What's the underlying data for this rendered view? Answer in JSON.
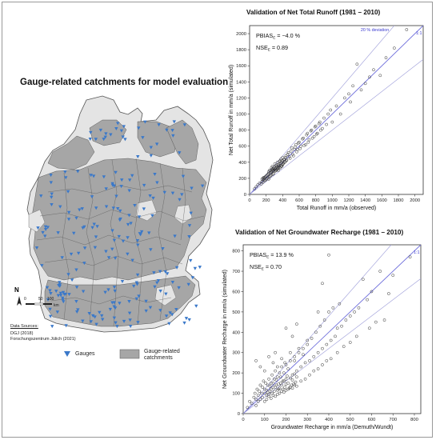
{
  "map": {
    "title": "Gauge-related catchments for model evaluation",
    "north_label": "N",
    "scale": {
      "ticks": [
        "0",
        "50",
        "100"
      ],
      "unit": "km"
    },
    "data_sources": {
      "heading": "Data Sources:",
      "lines": [
        "DGJ (2018)",
        "Forschungszentrum Jülich (2021)"
      ]
    },
    "legend": {
      "gauges_label": "Gauges",
      "catchments_label": "Gauge-related catchments"
    },
    "colors": {
      "gauge": "#3a78c9",
      "catchment": "#a6a6a6",
      "country": "#e4e4e4"
    }
  },
  "chart_data": [
    {
      "type": "scatter",
      "title": "Validation of Net Total Runoff (1981 – 2010)",
      "xlabel": "Total Runoff in mm/a (observed)",
      "ylabel": "Net Total Runoff in mm/a (simulated)",
      "xlim": [
        0,
        2100
      ],
      "ylim": [
        0,
        2100
      ],
      "xticks": [
        0,
        200,
        400,
        600,
        800,
        1000,
        1200,
        1400,
        1600,
        1800,
        2000
      ],
      "yticks": [
        0,
        200,
        400,
        600,
        800,
        1000,
        1200,
        1400,
        1600,
        1800,
        2000
      ],
      "deviation_label": "20 % deviation",
      "identity_label": "1:1",
      "stats": [
        {
          "name": "PBIAS",
          "sub": "E",
          "text": " = −4.0 %"
        },
        {
          "name": "NSE",
          "sub": "E",
          "text": " = 0.89"
        }
      ],
      "points": [
        [
          80,
          95
        ],
        [
          120,
          140
        ],
        [
          150,
          160
        ],
        [
          170,
          190
        ],
        [
          180,
          210
        ],
        [
          190,
          175
        ],
        [
          200,
          230
        ],
        [
          210,
          200
        ],
        [
          220,
          250
        ],
        [
          230,
          260
        ],
        [
          240,
          220
        ],
        [
          250,
          270
        ],
        [
          255,
          300
        ],
        [
          260,
          240
        ],
        [
          265,
          330
        ],
        [
          270,
          280
        ],
        [
          275,
          350
        ],
        [
          280,
          300
        ],
        [
          285,
          320
        ],
        [
          290,
          260
        ],
        [
          295,
          340
        ],
        [
          300,
          310
        ],
        [
          305,
          380
        ],
        [
          310,
          290
        ],
        [
          315,
          330
        ],
        [
          320,
          360
        ],
        [
          325,
          300
        ],
        [
          330,
          350
        ],
        [
          335,
          400
        ],
        [
          340,
          320
        ],
        [
          345,
          370
        ],
        [
          350,
          340
        ],
        [
          360,
          380
        ],
        [
          370,
          420
        ],
        [
          380,
          360
        ],
        [
          390,
          400
        ],
        [
          400,
          460
        ],
        [
          410,
          390
        ],
        [
          420,
          440
        ],
        [
          430,
          410
        ],
        [
          440,
          480
        ],
        [
          450,
          430
        ],
        [
          460,
          500
        ],
        [
          480,
          470
        ],
        [
          500,
          540
        ],
        [
          520,
          500
        ],
        [
          540,
          560
        ],
        [
          560,
          620
        ],
        [
          580,
          560
        ],
        [
          600,
          650
        ],
        [
          620,
          600
        ],
        [
          650,
          700
        ],
        [
          680,
          620
        ],
        [
          700,
          760
        ],
        [
          720,
          680
        ],
        [
          750,
          800
        ],
        [
          780,
          720
        ],
        [
          800,
          850
        ],
        [
          820,
          760
        ],
        [
          850,
          900
        ],
        [
          880,
          820
        ],
        [
          900,
          950
        ],
        [
          930,
          870
        ],
        [
          950,
          1000
        ],
        [
          980,
          1050
        ],
        [
          1000,
          900
        ],
        [
          1050,
          1100
        ],
        [
          1100,
          1000
        ],
        [
          1150,
          1200
        ],
        [
          1200,
          1250
        ],
        [
          1220,
          1150
        ],
        [
          1250,
          1350
        ],
        [
          1300,
          1620
        ],
        [
          1350,
          1300
        ],
        [
          1400,
          1380
        ],
        [
          1450,
          1460
        ],
        [
          1500,
          1550
        ],
        [
          1580,
          1480
        ],
        [
          1650,
          1700
        ],
        [
          1750,
          1820
        ],
        [
          1900,
          2050
        ],
        [
          140,
          130
        ],
        [
          160,
          200
        ],
        [
          100,
          120
        ],
        [
          60,
          70
        ],
        [
          230,
          190
        ],
        [
          285,
          290
        ],
        [
          295,
          300
        ],
        [
          305,
          320
        ],
        [
          315,
          300
        ],
        [
          325,
          340
        ],
        [
          335,
          310
        ],
        [
          345,
          330
        ],
        [
          355,
          360
        ],
        [
          365,
          340
        ],
        [
          375,
          390
        ],
        [
          385,
          350
        ],
        [
          395,
          420
        ],
        [
          405,
          380
        ],
        [
          415,
          430
        ],
        [
          425,
          400
        ],
        [
          435,
          460
        ],
        [
          445,
          420
        ],
        [
          470,
          520
        ],
        [
          490,
          450
        ],
        [
          510,
          580
        ],
        [
          530,
          480
        ],
        [
          550,
          590
        ],
        [
          570,
          530
        ],
        [
          590,
          640
        ],
        [
          610,
          570
        ],
        [
          640,
          690
        ],
        [
          660,
          610
        ],
        [
          690,
          740
        ],
        [
          710,
          650
        ],
        [
          740,
          790
        ],
        [
          760,
          700
        ],
        [
          790,
          840
        ],
        [
          810,
          750
        ],
        [
          840,
          880
        ],
        [
          860,
          800
        ],
        [
          350,
          300
        ],
        [
          360,
          410
        ],
        [
          370,
          330
        ],
        [
          380,
          440
        ],
        [
          390,
          350
        ],
        [
          400,
          370
        ],
        [
          280,
          250
        ],
        [
          270,
          310
        ],
        [
          260,
          280
        ],
        [
          250,
          230
        ],
        [
          240,
          300
        ],
        [
          230,
          280
        ],
        [
          220,
          210
        ],
        [
          210,
          240
        ],
        [
          200,
          190
        ],
        [
          190,
          220
        ],
        [
          180,
          170
        ],
        [
          170,
          210
        ],
        [
          160,
          150
        ],
        [
          150,
          190
        ]
      ]
    },
    {
      "type": "scatter",
      "title": "Validation of Net Groundwater Recharge (1981 – 2010)",
      "xlabel": "Groundwater Recharge in mm/a (Demuth/Wundt)",
      "ylabel": "Net Groundwater Recharge in mm/a (simulated)",
      "xlim": [
        0,
        830
      ],
      "ylim": [
        0,
        830
      ],
      "xticks": [
        0,
        100,
        200,
        300,
        400,
        500,
        600,
        700,
        800
      ],
      "yticks": [
        0,
        100,
        200,
        300,
        400,
        500,
        600,
        700,
        800
      ],
      "identity_label": "1:1",
      "stats": [
        {
          "name": "PBIAS",
          "sub": "E",
          "text": " = 13.9 %"
        },
        {
          "name": "NSE",
          "sub": "E",
          "text": " = 0.70"
        }
      ],
      "points": [
        [
          20,
          30
        ],
        [
          30,
          60
        ],
        [
          40,
          50
        ],
        [
          50,
          80
        ],
        [
          55,
          100
        ],
        [
          60,
          70
        ],
        [
          65,
          120
        ],
        [
          70,
          90
        ],
        [
          75,
          110
        ],
        [
          80,
          140
        ],
        [
          85,
          100
        ],
        [
          90,
          130
        ],
        [
          95,
          160
        ],
        [
          100,
          120
        ],
        [
          105,
          150
        ],
        [
          110,
          90
        ],
        [
          115,
          140
        ],
        [
          120,
          170
        ],
        [
          125,
          110
        ],
        [
          130,
          150
        ],
        [
          135,
          190
        ],
        [
          140,
          130
        ],
        [
          145,
          170
        ],
        [
          150,
          210
        ],
        [
          155,
          140
        ],
        [
          160,
          180
        ],
        [
          165,
          120
        ],
        [
          170,
          200
        ],
        [
          175,
          150
        ],
        [
          180,
          230
        ],
        [
          185,
          160
        ],
        [
          190,
          200
        ],
        [
          195,
          250
        ],
        [
          200,
          170
        ],
        [
          210,
          220
        ],
        [
          220,
          260
        ],
        [
          230,
          190
        ],
        [
          240,
          280
        ],
        [
          250,
          210
        ],
        [
          260,
          300
        ],
        [
          270,
          230
        ],
        [
          280,
          320
        ],
        [
          290,
          250
        ],
        [
          300,
          340
        ],
        [
          310,
          260
        ],
        [
          320,
          370
        ],
        [
          330,
          280
        ],
        [
          340,
          400
        ],
        [
          350,
          300
        ],
        [
          360,
          430
        ],
        [
          370,
          320
        ],
        [
          380,
          460
        ],
        [
          390,
          340
        ],
        [
          400,
          500
        ],
        [
          410,
          360
        ],
        [
          420,
          520
        ],
        [
          430,
          380
        ],
        [
          440,
          420
        ],
        [
          450,
          540
        ],
        [
          460,
          430
        ],
        [
          480,
          460
        ],
        [
          500,
          480
        ],
        [
          520,
          500
        ],
        [
          540,
          520
        ],
        [
          560,
          660
        ],
        [
          580,
          560
        ],
        [
          600,
          600
        ],
        [
          640,
          700
        ],
        [
          660,
          460
        ],
        [
          680,
          590
        ],
        [
          700,
          680
        ],
        [
          780,
          770
        ],
        [
          60,
          260
        ],
        [
          80,
          230
        ],
        [
          100,
          210
        ],
        [
          120,
          280
        ],
        [
          140,
          250
        ],
        [
          160,
          230
        ],
        [
          180,
          270
        ],
        [
          200,
          240
        ],
        [
          220,
          300
        ],
        [
          240,
          260
        ],
        [
          260,
          320
        ],
        [
          280,
          290
        ],
        [
          300,
          360
        ],
        [
          400,
          780
        ],
        [
          350,
          500
        ],
        [
          370,
          640
        ],
        [
          200,
          420
        ],
        [
          230,
          380
        ],
        [
          150,
          300
        ],
        [
          250,
          440
        ],
        [
          100,
          100
        ],
        [
          110,
          115
        ],
        [
          115,
          105
        ],
        [
          120,
          95
        ],
        [
          125,
          135
        ],
        [
          130,
          120
        ],
        [
          135,
          100
        ],
        [
          140,
          150
        ],
        [
          145,
          110
        ],
        [
          150,
          130
        ],
        [
          155,
          165
        ],
        [
          160,
          115
        ],
        [
          165,
          145
        ],
        [
          170,
          125
        ],
        [
          175,
          180
        ],
        [
          180,
          140
        ],
        [
          185,
          120
        ],
        [
          190,
          160
        ],
        [
          195,
          130
        ],
        [
          200,
          145
        ],
        [
          205,
          185
        ],
        [
          210,
          150
        ],
        [
          215,
          125
        ],
        [
          220,
          175
        ],
        [
          225,
          140
        ],
        [
          230,
          165
        ],
        [
          235,
          145
        ],
        [
          240,
          195
        ],
        [
          245,
          155
        ],
        [
          250,
          180
        ],
        [
          60,
          40
        ],
        [
          70,
          60
        ],
        [
          80,
          70
        ],
        [
          90,
          80
        ],
        [
          100,
          60
        ],
        [
          110,
          70
        ],
        [
          120,
          85
        ],
        [
          130,
          75
        ],
        [
          140,
          90
        ],
        [
          150,
          85
        ],
        [
          160,
          95
        ],
        [
          170,
          100
        ],
        [
          180,
          110
        ],
        [
          190,
          105
        ],
        [
          200,
          115
        ],
        [
          210,
          120
        ],
        [
          220,
          130
        ],
        [
          230,
          125
        ],
        [
          240,
          140
        ],
        [
          250,
          135
        ],
        [
          270,
          160
        ],
        [
          290,
          170
        ],
        [
          310,
          190
        ],
        [
          330,
          210
        ],
        [
          350,
          220
        ],
        [
          370,
          240
        ],
        [
          390,
          260
        ],
        [
          410,
          270
        ],
        [
          440,
          300
        ],
        [
          470,
          330
        ],
        [
          500,
          350
        ],
        [
          530,
          380
        ],
        [
          590,
          420
        ],
        [
          620,
          450
        ]
      ]
    }
  ]
}
